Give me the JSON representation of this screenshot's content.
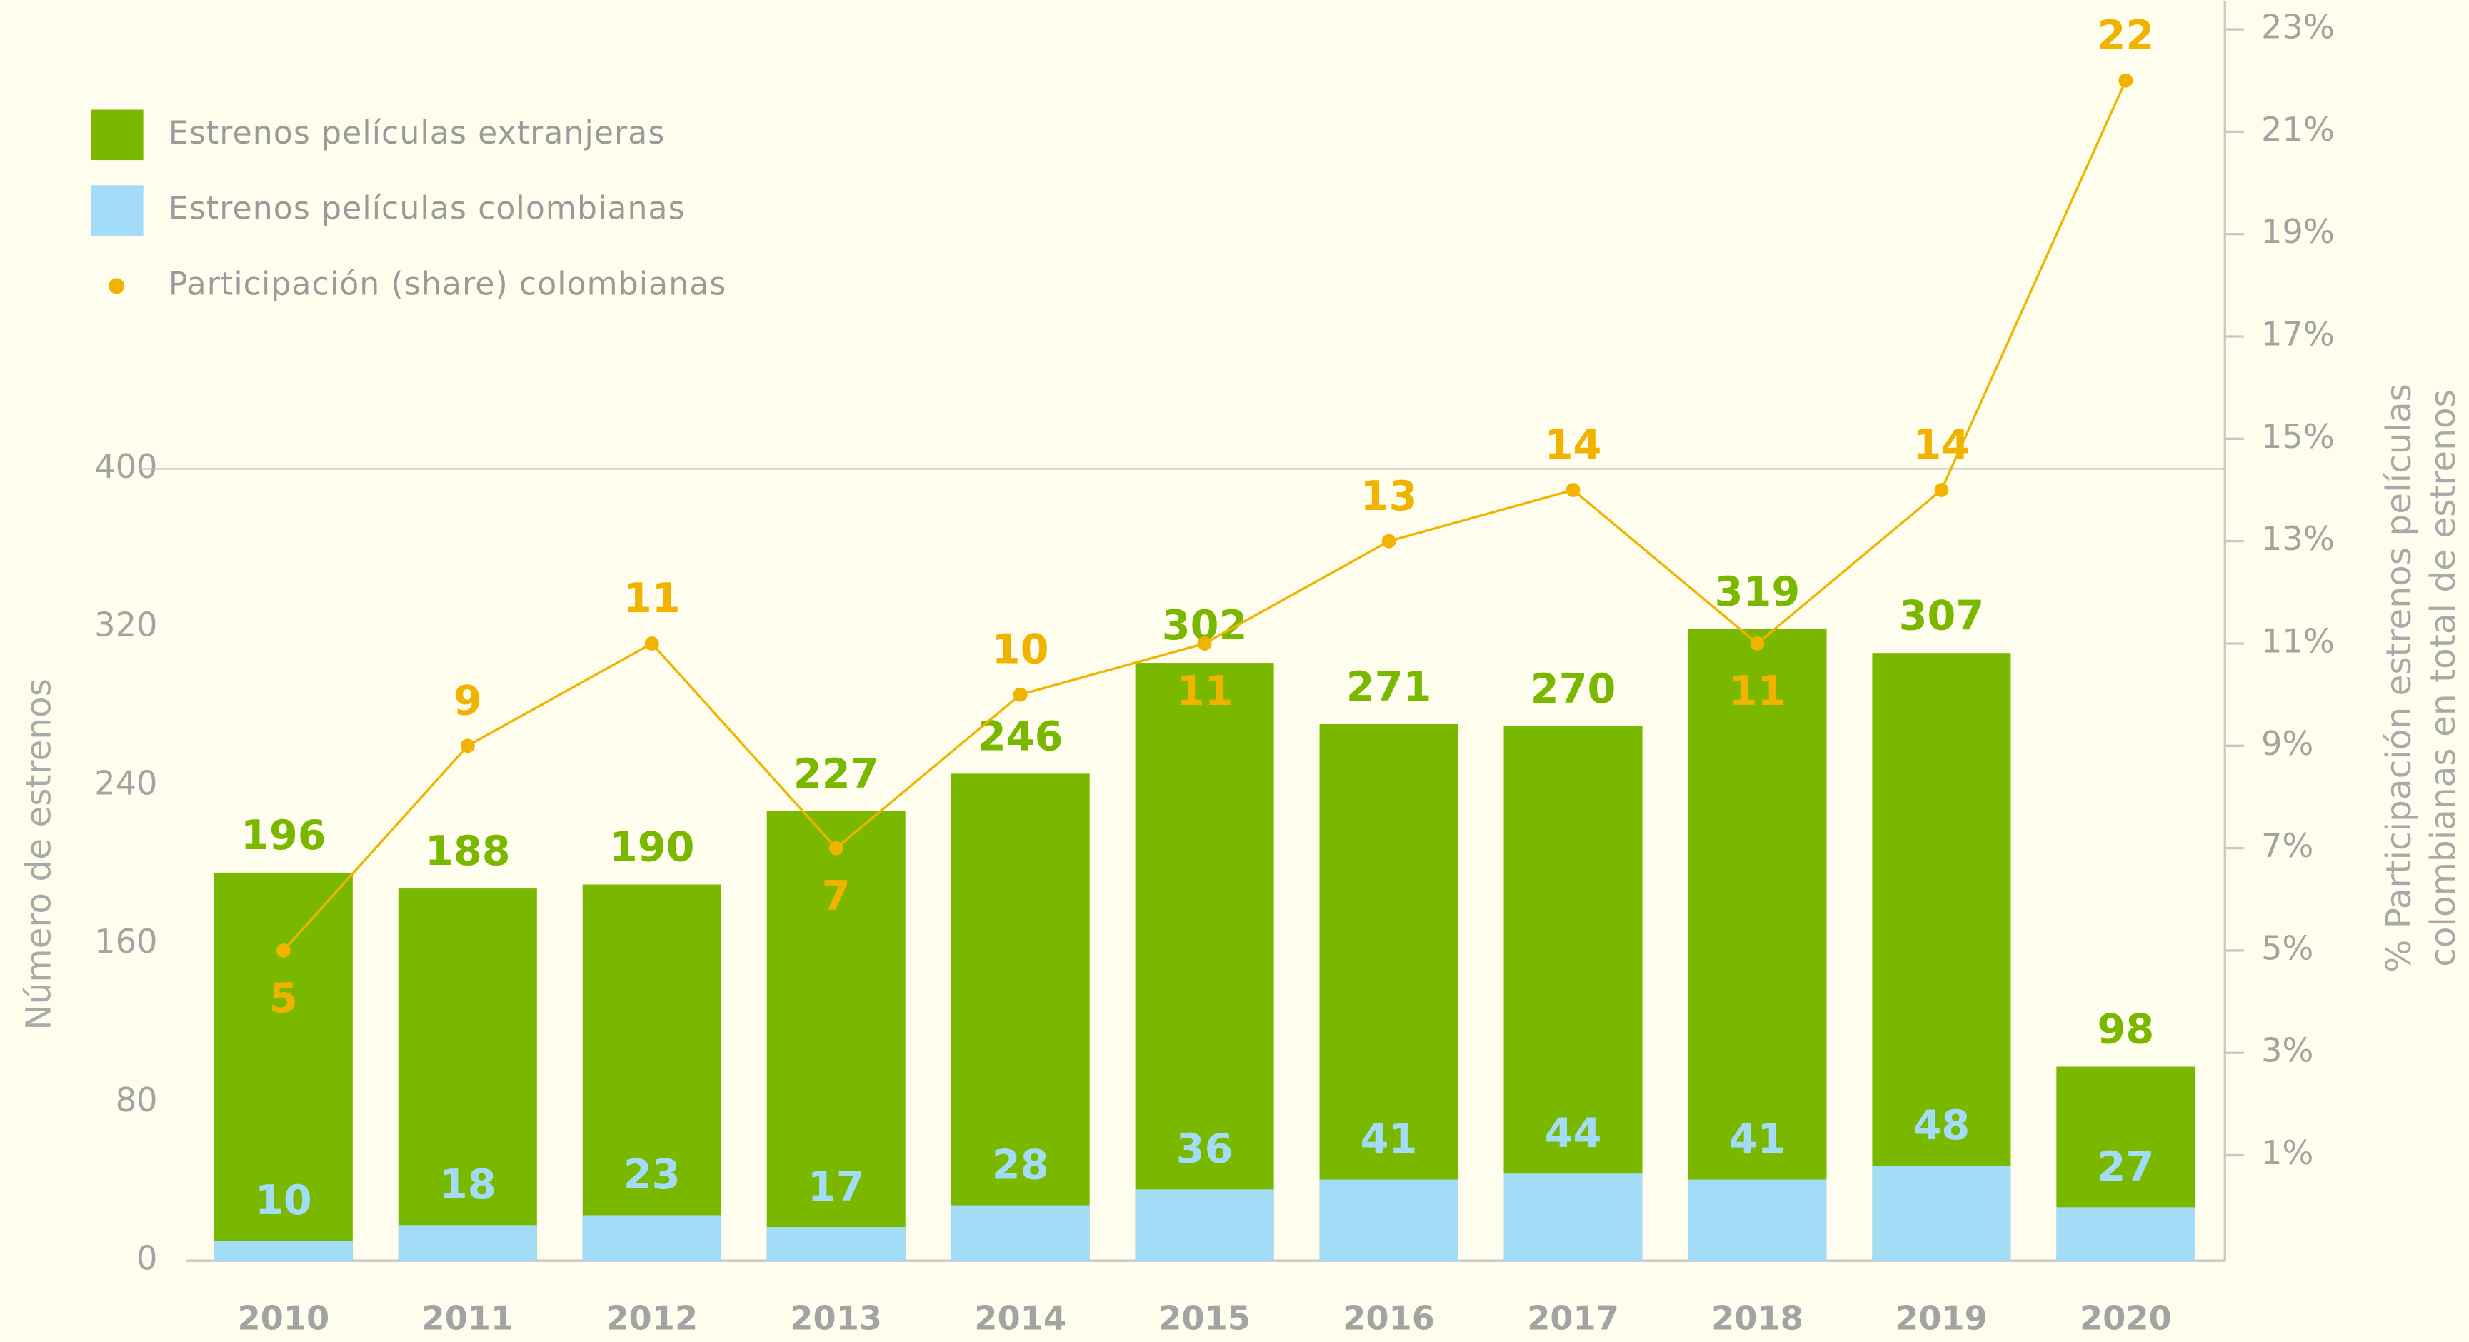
{
  "chart_data": {
    "type": "bar",
    "categories": [
      "2010",
      "2011",
      "2012",
      "2013",
      "2014",
      "2015",
      "2016",
      "2017",
      "2018",
      "2019",
      "2020"
    ],
    "series": [
      {
        "name": "Estrenos películas extranjeras",
        "color": "#7ab800",
        "values": [
          196,
          188,
          190,
          227,
          246,
          302,
          271,
          270,
          319,
          307,
          98
        ]
      },
      {
        "name": "Estrenos películas colombianas",
        "color": "#a3dcf7",
        "values": [
          10,
          18,
          23,
          17,
          28,
          36,
          41,
          44,
          41,
          48,
          27
        ]
      },
      {
        "name": "Participación (share) colombianas",
        "color": "#f0b400",
        "type": "line",
        "axis": "y2",
        "values": [
          5,
          9,
          11,
          7,
          10,
          11,
          13,
          14,
          11,
          14,
          22
        ]
      }
    ],
    "y_label": "Número de estrenos",
    "y2_label": [
      "% Participación estrenos películas",
      "colombianas en total de estrenos"
    ],
    "ylim": [
      0,
      622
    ],
    "yticks": [
      0,
      80,
      160,
      240,
      320,
      400
    ],
    "y2lim": [
      -1.06,
      23
    ],
    "y2ticks": [
      {
        "value": 1,
        "label": "1%"
      },
      {
        "value": 3,
        "label": "3%"
      },
      {
        "value": 5,
        "label": "5%"
      },
      {
        "value": 7,
        "label": "7%"
      },
      {
        "value": 9,
        "label": "9%"
      },
      {
        "value": 11,
        "label": "11%"
      },
      {
        "value": 13,
        "label": "13%"
      },
      {
        "value": 15,
        "label": "15%"
      },
      {
        "value": 17,
        "label": "17%"
      },
      {
        "value": 19,
        "label": "19%"
      },
      {
        "value": 21,
        "label": "21%"
      },
      {
        "value": 23,
        "label": "23%"
      }
    ],
    "legend": "top-left"
  }
}
